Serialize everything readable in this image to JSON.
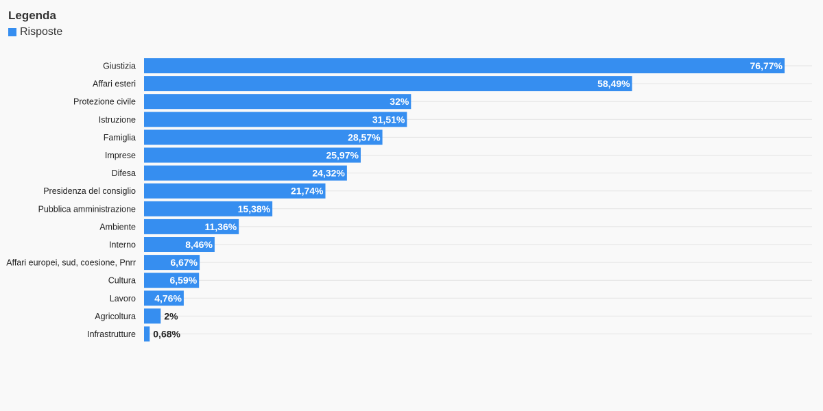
{
  "legend": {
    "title": "Legenda",
    "items": [
      {
        "label": "Risposte",
        "color": "#368ef0"
      }
    ]
  },
  "chart_data": {
    "type": "bar",
    "orientation": "horizontal",
    "categories": [
      "Giustizia",
      "Affari esteri",
      "Protezione civile",
      "Istruzione",
      "Famiglia",
      "Imprese",
      "Difesa",
      "Presidenza del consiglio",
      "Pubblica amministrazione",
      "Ambiente",
      "Interno",
      "Affari europei, sud, coesione, Pnrr",
      "Cultura",
      "Lavoro",
      "Agricoltura",
      "Infrastrutture"
    ],
    "series": [
      {
        "name": "Risposte",
        "color": "#368ef0",
        "values": [
          76.77,
          58.49,
          32,
          31.51,
          28.57,
          25.97,
          24.32,
          21.74,
          15.38,
          11.36,
          8.46,
          6.67,
          6.59,
          4.76,
          2,
          0.68
        ],
        "labels": [
          "76,77%",
          "58,49%",
          "32%",
          "31,51%",
          "28,57%",
          "25,97%",
          "24,32%",
          "21,74%",
          "15,38%",
          "11,36%",
          "8,46%",
          "6,67%",
          "6,59%",
          "4,76%",
          "2%",
          "0,68%"
        ]
      }
    ],
    "title": "",
    "xlabel": "",
    "ylabel": "",
    "xlim": [
      0,
      76.77
    ],
    "grid": true,
    "legend_position": "top-left"
  }
}
